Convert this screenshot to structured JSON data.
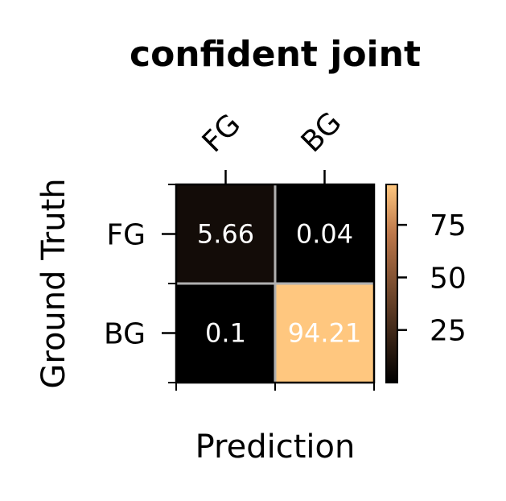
{
  "chart_data": {
    "type": "heatmap",
    "title": "confident joint",
    "xlabel": "Prediction",
    "ylabel": "Ground Truth",
    "x_categories": [
      "FG",
      "BG"
    ],
    "y_categories": [
      "FG",
      "BG"
    ],
    "values": [
      [
        5.66,
        0.04
      ],
      [
        0.1,
        94.21
      ]
    ],
    "cell_labels": [
      [
        "5.66",
        "0.04"
      ],
      [
        "0.1",
        "94.21"
      ]
    ],
    "colormap": "copper",
    "colorbar": {
      "range": [
        0,
        94.21
      ],
      "ticks": [
        25,
        50,
        75
      ],
      "tick_labels": [
        "25",
        "50",
        "75"
      ]
    },
    "x_tick_position": "top",
    "grid": true,
    "grid_color": "#b0b0b0"
  }
}
